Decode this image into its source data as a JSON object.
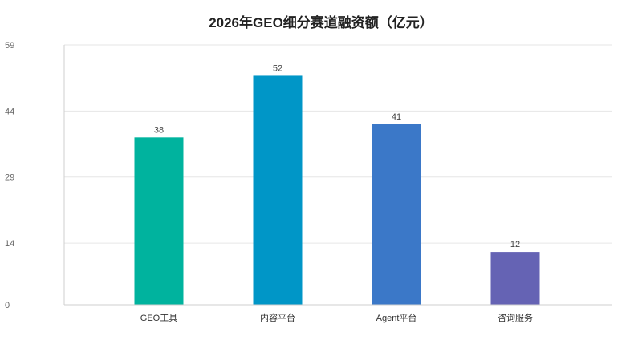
{
  "chart_data": {
    "type": "bar",
    "title": "2026年GEO细分赛道融资额（亿元）",
    "categories": [
      "GEO工具",
      "内容平台",
      "Agent平台",
      "咨询服务"
    ],
    "values": [
      38,
      52,
      41,
      12
    ],
    "colors": [
      "#00b39e",
      "#0096c7",
      "#3b78c8",
      "#6563b4"
    ],
    "xlabel": "",
    "ylabel": "",
    "ylim": [
      0,
      59
    ],
    "yticks": [
      0,
      14,
      29,
      44,
      59
    ],
    "grid": true,
    "legend": "none"
  }
}
